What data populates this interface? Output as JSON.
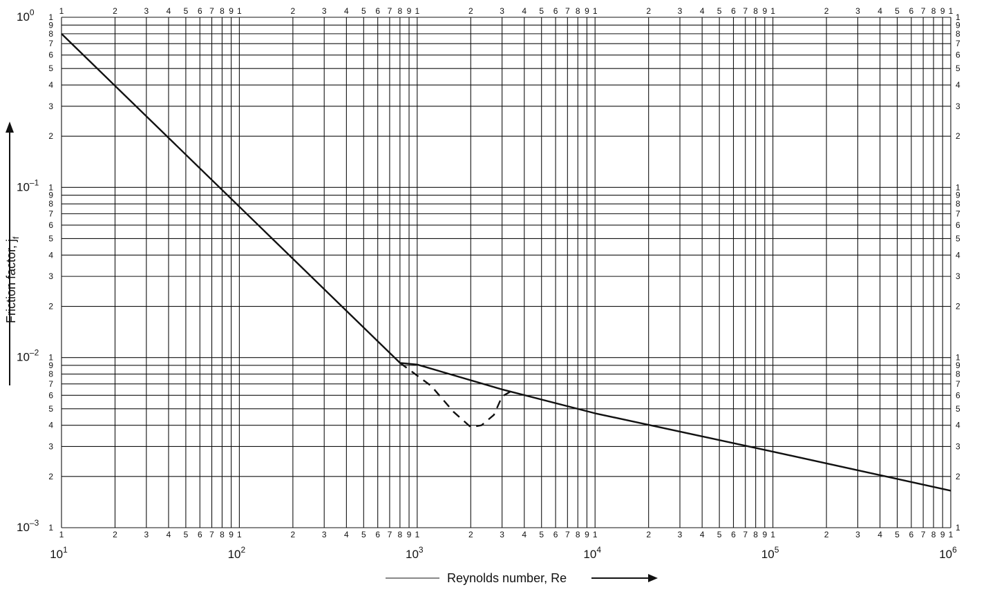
{
  "chart_data": {
    "type": "line",
    "title": "",
    "xlabel": "Reynolds number, Re",
    "ylabel": "Friction factor, j",
    "ylabel_subscript": "f",
    "x_scale": "log",
    "y_scale": "log",
    "xlim": [
      10,
      1000000
    ],
    "ylim": [
      0.001,
      1
    ],
    "grid": true,
    "x_decade_labels": [
      {
        "base": "10",
        "exp": "1"
      },
      {
        "base": "10",
        "exp": "2"
      },
      {
        "base": "10",
        "exp": "3"
      },
      {
        "base": "10",
        "exp": "4"
      },
      {
        "base": "10",
        "exp": "5"
      },
      {
        "base": "10",
        "exp": "6"
      }
    ],
    "y_decade_labels": [
      {
        "base": "10",
        "exp": "0"
      },
      {
        "base": "10",
        "exp": "–1"
      },
      {
        "base": "10",
        "exp": "–2"
      },
      {
        "base": "10",
        "exp": "–3"
      }
    ],
    "minor_tick_labels": [
      "1",
      "2",
      "3",
      "4",
      "5",
      "6",
      "7",
      "8",
      "9"
    ],
    "series": [
      {
        "style": "solid",
        "x": [
          10,
          800,
          1000,
          3000,
          10000,
          100000,
          1000000
        ],
        "y": [
          0.8,
          0.0093,
          0.0091,
          0.0065,
          0.0047,
          0.0028,
          0.00165
        ]
      },
      {
        "style": "dashed",
        "x": [
          800,
          1200,
          1600,
          2000,
          2300,
          2700,
          3000,
          3500
        ],
        "y": [
          0.0093,
          0.0068,
          0.0048,
          0.0039,
          0.004,
          0.0046,
          0.0059,
          0.0065
        ]
      }
    ]
  }
}
